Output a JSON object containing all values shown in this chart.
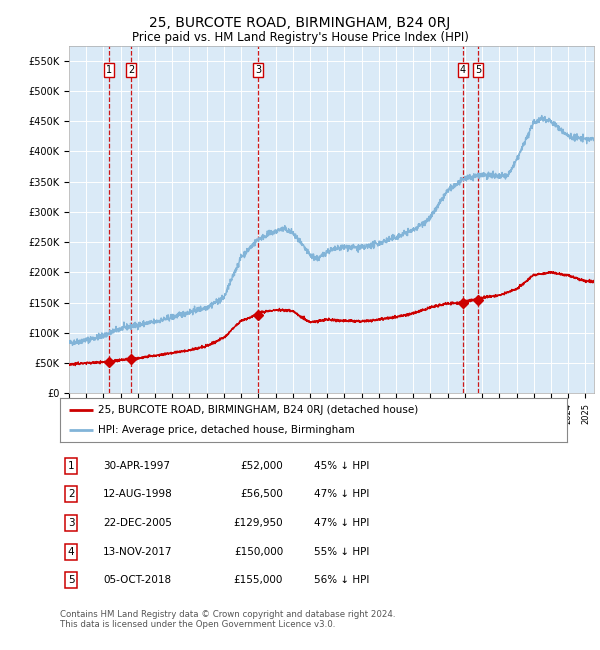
{
  "title": "25, BURCOTE ROAD, BIRMINGHAM, B24 0RJ",
  "subtitle": "Price paid vs. HM Land Registry's House Price Index (HPI)",
  "title_fontsize": 10,
  "subtitle_fontsize": 8.5,
  "ylim": [
    0,
    575000
  ],
  "yticks": [
    0,
    50000,
    100000,
    150000,
    200000,
    250000,
    300000,
    350000,
    400000,
    450000,
    500000,
    550000
  ],
  "ytick_labels": [
    "£0",
    "£50K",
    "£100K",
    "£150K",
    "£200K",
    "£250K",
    "£300K",
    "£350K",
    "£400K",
    "£450K",
    "£500K",
    "£550K"
  ],
  "bg_color": "#daeaf7",
  "grid_color": "#ffffff",
  "hpi_color": "#82b4d8",
  "price_color": "#cc0000",
  "vline_color": "#cc0000",
  "marker_color": "#cc0000",
  "sale_dates_x": [
    1997.33,
    1998.62,
    2005.98,
    2017.87,
    2018.76
  ],
  "sale_prices": [
    52000,
    56500,
    129950,
    150000,
    155000
  ],
  "sale_labels": [
    "1",
    "2",
    "3",
    "4",
    "5"
  ],
  "sale_info": [
    {
      "num": "1",
      "date": "30-APR-1997",
      "price": "£52,000",
      "hpi": "45% ↓ HPI"
    },
    {
      "num": "2",
      "date": "12-AUG-1998",
      "price": "£56,500",
      "hpi": "47% ↓ HPI"
    },
    {
      "num": "3",
      "date": "22-DEC-2005",
      "price": "£129,950",
      "hpi": "47% ↓ HPI"
    },
    {
      "num": "4",
      "date": "13-NOV-2017",
      "price": "£150,000",
      "hpi": "55% ↓ HPI"
    },
    {
      "num": "5",
      "date": "05-OCT-2018",
      "price": "£155,000",
      "hpi": "56% ↓ HPI"
    }
  ],
  "legend_price_label": "25, BURCOTE ROAD, BIRMINGHAM, B24 0RJ (detached house)",
  "legend_hpi_label": "HPI: Average price, detached house, Birmingham",
  "footer": "Contains HM Land Registry data © Crown copyright and database right 2024.\nThis data is licensed under the Open Government Licence v3.0.",
  "xmin": 1995.0,
  "xmax": 2025.5
}
